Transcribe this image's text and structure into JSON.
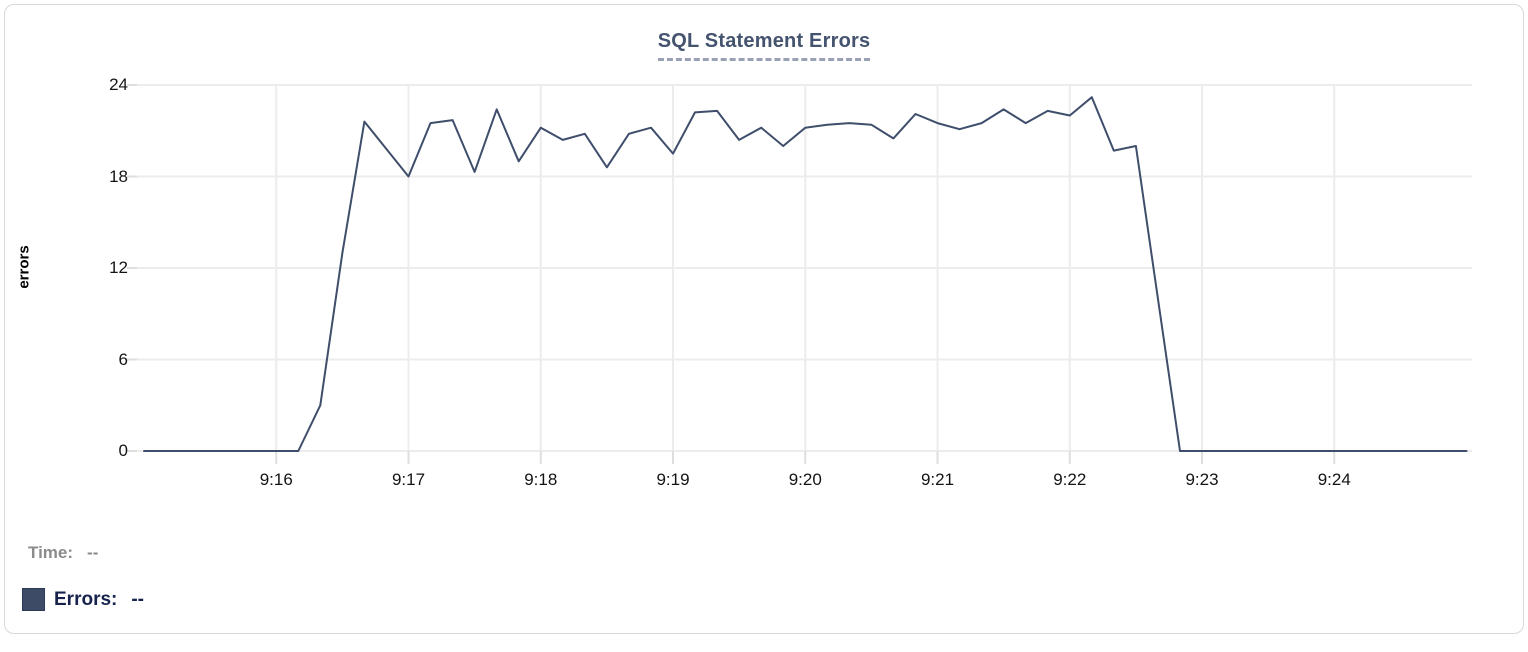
{
  "chart_data": {
    "type": "line",
    "title": "SQL Statement Errors",
    "xlabel": "",
    "ylabel": "errors",
    "ylim": [
      0,
      24
    ],
    "y_ticks": [
      0,
      6,
      12,
      18,
      24
    ],
    "x_ticks": [
      "9:16",
      "9:17",
      "9:18",
      "9:19",
      "9:20",
      "9:21",
      "9:22",
      "9:23",
      "9:24"
    ],
    "x_range": [
      "9:15:00",
      "9:25:00"
    ],
    "grid": true,
    "legend_position": "bottom-left",
    "series": [
      {
        "name": "Errors",
        "color": "#3f4e6b",
        "points": [
          [
            "9:15:00",
            0
          ],
          [
            "9:15:10",
            0
          ],
          [
            "9:15:20",
            0
          ],
          [
            "9:15:30",
            0
          ],
          [
            "9:15:40",
            0
          ],
          [
            "9:15:50",
            0
          ],
          [
            "9:16:00",
            0
          ],
          [
            "9:16:10",
            0
          ],
          [
            "9:16:20",
            3
          ],
          [
            "9:16:30",
            13
          ],
          [
            "9:16:40",
            21.6
          ],
          [
            "9:16:50",
            19.8
          ],
          [
            "9:17:00",
            18
          ],
          [
            "9:17:10",
            21.5
          ],
          [
            "9:17:20",
            21.7
          ],
          [
            "9:17:30",
            18.3
          ],
          [
            "9:17:40",
            22.4
          ],
          [
            "9:17:50",
            19
          ],
          [
            "9:18:00",
            21.2
          ],
          [
            "9:18:10",
            20.4
          ],
          [
            "9:18:20",
            20.8
          ],
          [
            "9:18:30",
            18.6
          ],
          [
            "9:18:40",
            20.8
          ],
          [
            "9:18:50",
            21.2
          ],
          [
            "9:19:00",
            19.5
          ],
          [
            "9:19:10",
            22.2
          ],
          [
            "9:19:20",
            22.3
          ],
          [
            "9:19:30",
            20.4
          ],
          [
            "9:19:40",
            21.2
          ],
          [
            "9:19:50",
            20
          ],
          [
            "9:20:00",
            21.2
          ],
          [
            "9:20:10",
            21.4
          ],
          [
            "9:20:20",
            21.5
          ],
          [
            "9:20:30",
            21.4
          ],
          [
            "9:20:40",
            20.5
          ],
          [
            "9:20:50",
            22.1
          ],
          [
            "9:21:00",
            21.5
          ],
          [
            "9:21:10",
            21.1
          ],
          [
            "9:21:20",
            21.5
          ],
          [
            "9:21:30",
            22.4
          ],
          [
            "9:21:40",
            21.5
          ],
          [
            "9:21:50",
            22.3
          ],
          [
            "9:22:00",
            22
          ],
          [
            "9:22:10",
            23.2
          ],
          [
            "9:22:20",
            19.7
          ],
          [
            "9:22:30",
            20
          ],
          [
            "9:22:40",
            10
          ],
          [
            "9:22:50",
            0
          ],
          [
            "9:23:00",
            0
          ],
          [
            "9:23:10",
            0
          ],
          [
            "9:23:20",
            0
          ],
          [
            "9:23:30",
            0
          ],
          [
            "9:23:40",
            0
          ],
          [
            "9:23:50",
            0
          ],
          [
            "9:24:00",
            0
          ],
          [
            "9:24:10",
            0
          ],
          [
            "9:24:20",
            0
          ],
          [
            "9:24:30",
            0
          ],
          [
            "9:24:40",
            0
          ],
          [
            "9:24:50",
            0
          ],
          [
            "9:25:00",
            0
          ]
        ]
      }
    ]
  },
  "legend": {
    "time_label": "Time:",
    "time_value": "--",
    "series_label": "Errors:",
    "series_value": "--",
    "swatch_color": "#3d4b66"
  },
  "colors": {
    "line": "#3f4e6b",
    "grid": "#ececec",
    "tick": "#dedede",
    "title": "#44536e",
    "title_underline": "#99a2b4",
    "axis_text": "#141414",
    "time_text": "#8b8b8b",
    "errors_text": "#17234d",
    "card_border": "#d8d8d8"
  }
}
